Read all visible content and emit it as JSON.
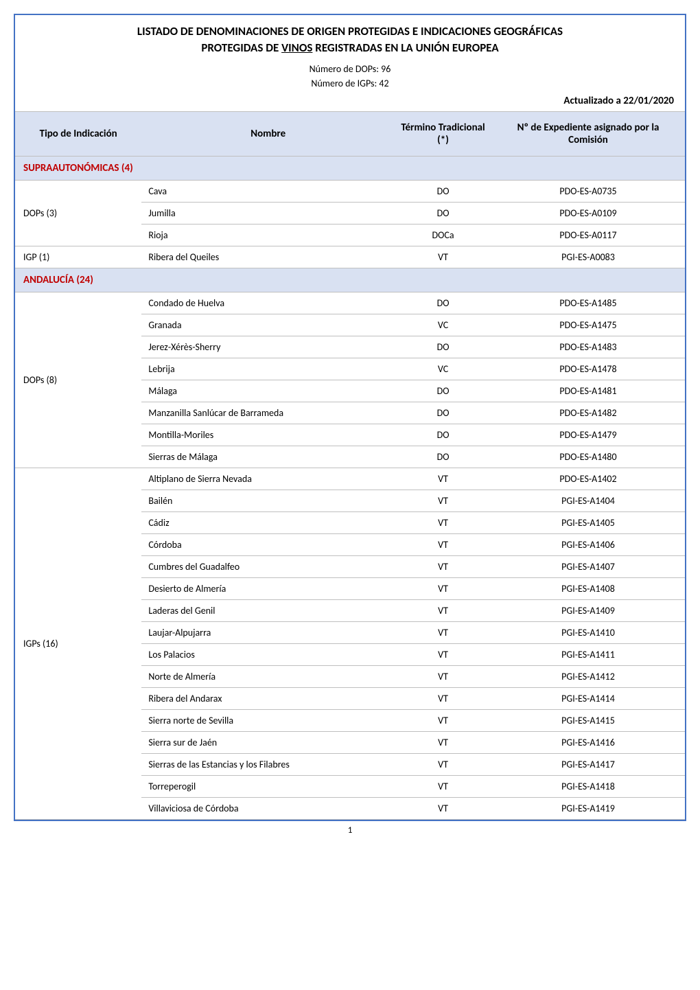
{
  "title_line1": "LISTADO DE DENOMINACIONES DE ORIGEN PROTEGIDAS E INDICACIONES GEOGRÁFICAS",
  "title_line2_pre": "PROTEGIDAS DE ",
  "title_line2_underline": "VINOS",
  "title_line2_post": " REGISTRADAS EN LA UNIÓN EUROPEA",
  "count_dops": "Número de DOPs: 96",
  "count_igps": "Número de IGPs:  42",
  "updated": "Actualizado a 22/01/2020",
  "headers": {
    "tipo": "Tipo de Indicación",
    "nombre": "Nombre",
    "termino": "Término Tradicional (*)",
    "expediente": "Nº de Expediente asignado por la Comisión"
  },
  "sections": [
    {
      "title": "SUPRAAUTONÓMICAS (4)",
      "groups": [
        {
          "indication": "DOPs (3)",
          "rows": [
            {
              "name": "Cava",
              "term": "DO",
              "exp": "PDO-ES-A0735"
            },
            {
              "name": "Jumilla",
              "term": "DO",
              "exp": "PDO-ES-A0109"
            },
            {
              "name": "Rioja",
              "term": "DOCa",
              "exp": "PDO-ES-A0117"
            }
          ]
        },
        {
          "indication": "IGP (1)",
          "rows": [
            {
              "name": "Ribera del Queiles",
              "term": "VT",
              "exp": "PGI-ES-A0083"
            }
          ]
        }
      ]
    },
    {
      "title": "ANDALUCÍA (24)",
      "groups": [
        {
          "indication": "DOPs (8)",
          "rows": [
            {
              "name": "Condado de Huelva",
              "term": "DO",
              "exp": "PDO-ES-A1485"
            },
            {
              "name": "Granada",
              "term": "VC",
              "exp": "PDO-ES-A1475"
            },
            {
              "name": "Jerez-Xérès-Sherry",
              "term": "DO",
              "exp": "PDO-ES-A1483"
            },
            {
              "name": "Lebrija",
              "term": "VC",
              "exp": "PDO-ES-A1478"
            },
            {
              "name": "Málaga",
              "term": "DO",
              "exp": "PDO-ES-A1481"
            },
            {
              "name": "Manzanilla Sanlúcar de Barrameda",
              "term": "DO",
              "exp": "PDO-ES-A1482"
            },
            {
              "name": "Montilla-Moriles",
              "term": "DO",
              "exp": "PDO-ES-A1479"
            },
            {
              "name": "Sierras de Málaga",
              "term": "DO",
              "exp": "PDO-ES-A1480"
            }
          ]
        },
        {
          "indication": "IGPs (16)",
          "rows": [
            {
              "name": "Altiplano de Sierra Nevada",
              "term": "VT",
              "exp": "PDO-ES-A1402"
            },
            {
              "name": "Bailén",
              "term": "VT",
              "exp": "PGI-ES-A1404"
            },
            {
              "name": "Cádiz",
              "term": "VT",
              "exp": "PGI-ES-A1405"
            },
            {
              "name": "Córdoba",
              "term": "VT",
              "exp": "PGI-ES-A1406"
            },
            {
              "name": "Cumbres del Guadalfeo",
              "term": "VT",
              "exp": "PGI-ES-A1407"
            },
            {
              "name": "Desierto de Almería",
              "term": "VT",
              "exp": "PGI-ES-A1408"
            },
            {
              "name": "Laderas del Genil",
              "term": "VT",
              "exp": "PGI-ES-A1409"
            },
            {
              "name": "Laujar-Alpujarra",
              "term": "VT",
              "exp": "PGI-ES-A1410"
            },
            {
              "name": "Los Palacios",
              "term": "VT",
              "exp": "PGI-ES-A1411"
            },
            {
              "name": "Norte de Almería",
              "term": "VT",
              "exp": "PGI-ES-A1412"
            },
            {
              "name": "Ribera del Andarax",
              "term": "VT",
              "exp": "PGI-ES-A1414"
            },
            {
              "name": "Sierra norte de Sevilla",
              "term": "VT",
              "exp": "PGI-ES-A1415"
            },
            {
              "name": "Sierra sur de Jaén",
              "term": "VT",
              "exp": "PGI-ES-A1416"
            },
            {
              "name": "Sierras de las Estancias y los Filabres",
              "term": "VT",
              "exp": "PGI-ES-A1417"
            },
            {
              "name": "Torreperogil",
              "term": "VT",
              "exp": "PGI-ES-A1418"
            },
            {
              "name": "Villaviciosa de Córdoba",
              "term": "VT",
              "exp": "PGI-ES-A1419"
            }
          ]
        }
      ]
    }
  ],
  "page_number": "1",
  "colors": {
    "border": "#4472c4",
    "header_bg": "#d9e1f2",
    "section_text": "#c00000",
    "cell_border": "#bfbfbf"
  }
}
